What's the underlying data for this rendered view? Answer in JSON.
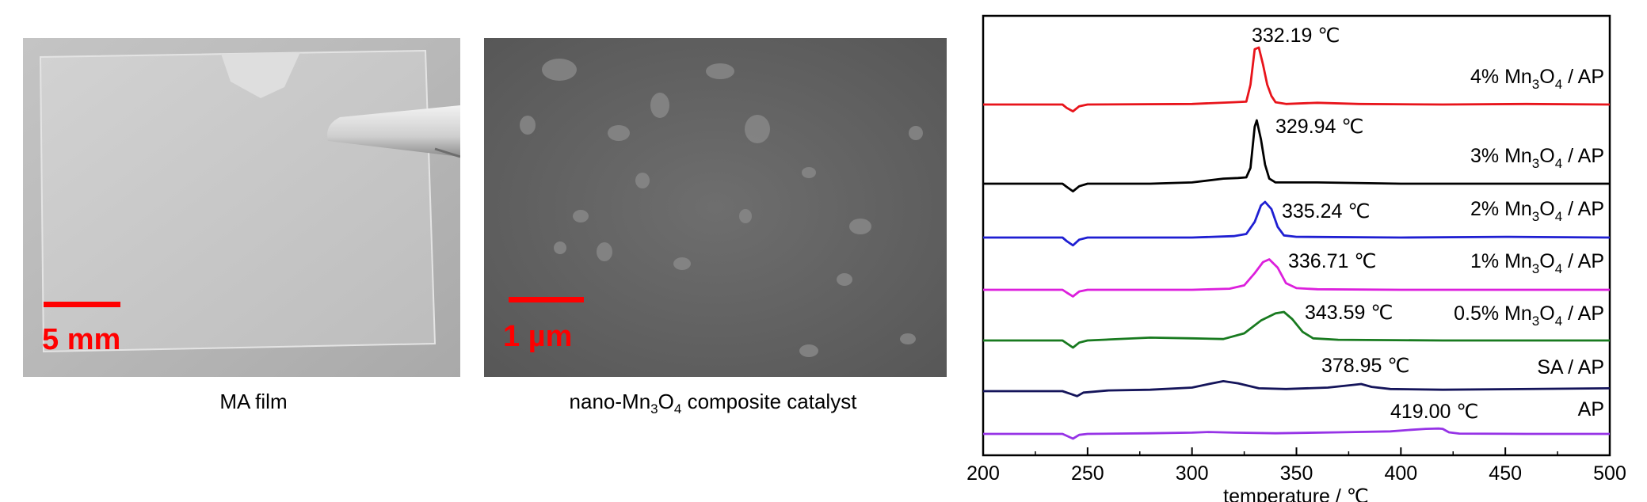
{
  "panels": {
    "film": {
      "scale_label": "5 mm",
      "caption": "MA film"
    },
    "catalyst": {
      "scale_label": "1 µm",
      "caption_prefix": "nano-Mn",
      "caption_sub1": "3",
      "caption_mid": "O",
      "caption_sub2": "4",
      "caption_suffix": " composite catalyst"
    }
  },
  "chart_data": {
    "type": "line",
    "xlabel": "temperature / ℃",
    "xlim": [
      200,
      500
    ],
    "xticks": [
      200,
      250,
      300,
      350,
      400,
      450,
      500
    ],
    "grid": false,
    "series": [
      {
        "name": "4% Mn3O4 / AP",
        "color": "#e8141b",
        "peak_label": "332.19 ℃",
        "peak_T": 332.19,
        "points": [
          [
            200,
            0
          ],
          [
            238,
            0
          ],
          [
            240,
            -0.06
          ],
          [
            243,
            -0.12
          ],
          [
            246,
            -0.03
          ],
          [
            250,
            0
          ],
          [
            300,
            0.01
          ],
          [
            320,
            0.04
          ],
          [
            326,
            0.05
          ],
          [
            328,
            0.35
          ],
          [
            330,
            0.97
          ],
          [
            332,
            1.0
          ],
          [
            334,
            0.7
          ],
          [
            336,
            0.35
          ],
          [
            338,
            0.15
          ],
          [
            340,
            0.04
          ],
          [
            345,
            0.01
          ],
          [
            360,
            0.03
          ],
          [
            380,
            0.01
          ],
          [
            420,
            0.0
          ],
          [
            460,
            0.01
          ],
          [
            500,
            0
          ]
        ]
      },
      {
        "name": "3% Mn3O4 / AP",
        "color": "#000000",
        "peak_label": "329.94 ℃",
        "peak_T": 329.94,
        "points": [
          [
            200,
            0
          ],
          [
            238,
            0
          ],
          [
            240,
            -0.05
          ],
          [
            243,
            -0.12
          ],
          [
            246,
            -0.04
          ],
          [
            250,
            0
          ],
          [
            280,
            0.0
          ],
          [
            300,
            0.02
          ],
          [
            315,
            0.08
          ],
          [
            322,
            0.09
          ],
          [
            326,
            0.1
          ],
          [
            328,
            0.25
          ],
          [
            330,
            0.9
          ],
          [
            331,
            1.0
          ],
          [
            333,
            0.7
          ],
          [
            335,
            0.3
          ],
          [
            337,
            0.08
          ],
          [
            340,
            0.02
          ],
          [
            360,
            0.02
          ],
          [
            400,
            0.0
          ],
          [
            450,
            0.0
          ],
          [
            500,
            0
          ]
        ]
      },
      {
        "name": "2% Mn3O4 / AP",
        "color": "#1f1fd2",
        "peak_label": "335.24 ℃",
        "peak_T": 335.24,
        "points": [
          [
            200,
            0
          ],
          [
            238,
            0
          ],
          [
            240,
            -0.05
          ],
          [
            243,
            -0.11
          ],
          [
            246,
            -0.03
          ],
          [
            250,
            0
          ],
          [
            300,
            0.0
          ],
          [
            320,
            0.02
          ],
          [
            326,
            0.05
          ],
          [
            330,
            0.22
          ],
          [
            333,
            0.45
          ],
          [
            335,
            0.5
          ],
          [
            338,
            0.4
          ],
          [
            341,
            0.15
          ],
          [
            344,
            0.03
          ],
          [
            350,
            0.01
          ],
          [
            400,
            0.0
          ],
          [
            450,
            0.01
          ],
          [
            500,
            0
          ]
        ]
      },
      {
        "name": "1% Mn3O4 / AP",
        "color": "#dc1fdc",
        "peak_label": "336.71 ℃",
        "peak_T": 336.71,
        "points": [
          [
            200,
            0
          ],
          [
            238,
            0
          ],
          [
            240,
            -0.05
          ],
          [
            243,
            -0.12
          ],
          [
            246,
            -0.03
          ],
          [
            250,
            0
          ],
          [
            300,
            0.0
          ],
          [
            318,
            0.02
          ],
          [
            325,
            0.08
          ],
          [
            330,
            0.3
          ],
          [
            334,
            0.5
          ],
          [
            337,
            0.55
          ],
          [
            341,
            0.4
          ],
          [
            345,
            0.12
          ],
          [
            350,
            0.03
          ],
          [
            360,
            0.01
          ],
          [
            400,
            0.0
          ],
          [
            500,
            0
          ]
        ]
      },
      {
        "name": "0.5% Mn3O4 / AP",
        "color": "#187a1f",
        "peak_label": "343.59 ℃",
        "peak_T": 343.59,
        "points": [
          [
            200,
            0
          ],
          [
            238,
            0
          ],
          [
            240,
            -0.04
          ],
          [
            243,
            -0.1
          ],
          [
            246,
            -0.03
          ],
          [
            250,
            0
          ],
          [
            280,
            0.04
          ],
          [
            300,
            0.03
          ],
          [
            315,
            0.02
          ],
          [
            325,
            0.1
          ],
          [
            333,
            0.28
          ],
          [
            340,
            0.38
          ],
          [
            344,
            0.4
          ],
          [
            348,
            0.3
          ],
          [
            353,
            0.12
          ],
          [
            358,
            0.03
          ],
          [
            370,
            0.01
          ],
          [
            420,
            0.0
          ],
          [
            500,
            0
          ]
        ]
      },
      {
        "name": "SA / AP",
        "color": "#14145a",
        "peak_label": "378.95 ℃",
        "peak_T": 378.95,
        "points": [
          [
            200,
            0
          ],
          [
            238,
            0
          ],
          [
            242,
            -0.04
          ],
          [
            245,
            -0.07
          ],
          [
            248,
            -0.02
          ],
          [
            260,
            0.01
          ],
          [
            280,
            0.02
          ],
          [
            300,
            0.05
          ],
          [
            308,
            0.1
          ],
          [
            315,
            0.14
          ],
          [
            322,
            0.11
          ],
          [
            332,
            0.04
          ],
          [
            345,
            0.03
          ],
          [
            365,
            0.05
          ],
          [
            378,
            0.09
          ],
          [
            381,
            0.1
          ],
          [
            386,
            0.06
          ],
          [
            395,
            0.03
          ],
          [
            420,
            0.02
          ],
          [
            500,
            0.04
          ]
        ]
      },
      {
        "name": "AP",
        "color": "#9633e6",
        "peak_label": "419.00 ℃",
        "peak_T": 419.0,
        "points": [
          [
            200,
            0
          ],
          [
            238,
            0
          ],
          [
            240,
            -0.06
          ],
          [
            243,
            -0.15
          ],
          [
            246,
            -0.03
          ],
          [
            250,
            0
          ],
          [
            280,
            0.02
          ],
          [
            300,
            0.04
          ],
          [
            308,
            0.06
          ],
          [
            320,
            0.04
          ],
          [
            340,
            0.02
          ],
          [
            370,
            0.05
          ],
          [
            395,
            0.08
          ],
          [
            405,
            0.13
          ],
          [
            412,
            0.16
          ],
          [
            418,
            0.17
          ],
          [
            420,
            0.16
          ],
          [
            423,
            0.05
          ],
          [
            428,
            0.01
          ],
          [
            460,
            0.0
          ],
          [
            500,
            0.0
          ]
        ]
      }
    ]
  }
}
